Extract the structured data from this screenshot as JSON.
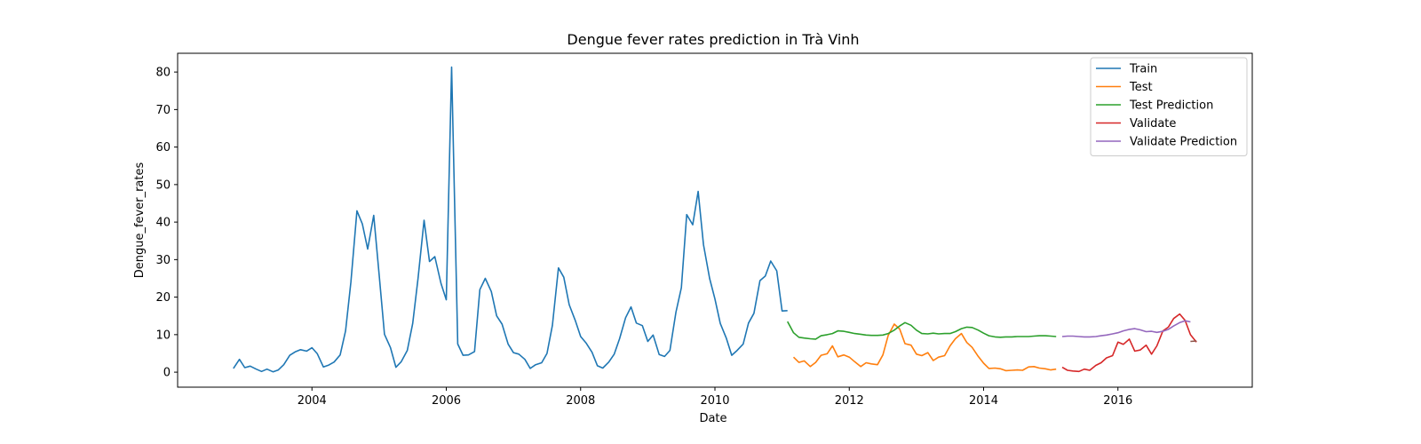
{
  "chart_data": {
    "type": "line",
    "title": "Dengue fever rates prediction in Trà Vinh",
    "xlabel": "Date",
    "ylabel": "Dengue_fever_rates",
    "xlim": [
      2002.0,
      2018.0
    ],
    "ylim": [
      -4,
      85
    ],
    "x_ticks": [
      2004,
      2006,
      2008,
      2010,
      2012,
      2014,
      2016
    ],
    "y_ticks": [
      0,
      10,
      20,
      30,
      40,
      50,
      60,
      70,
      80
    ],
    "grid": false,
    "legend_position": "top-right",
    "series": [
      {
        "name": "Train",
        "color": "#1f77b4",
        "points": [
          [
            2002.83,
            1.0
          ],
          [
            2002.92,
            3.4
          ],
          [
            2003.0,
            1.2
          ],
          [
            2003.08,
            1.6
          ],
          [
            2003.17,
            0.8
          ],
          [
            2003.25,
            0.2
          ],
          [
            2003.33,
            0.8
          ],
          [
            2003.42,
            0.1
          ],
          [
            2003.5,
            0.6
          ],
          [
            2003.58,
            2.0
          ],
          [
            2003.67,
            4.5
          ],
          [
            2003.75,
            5.4
          ],
          [
            2003.83,
            6.0
          ],
          [
            2003.92,
            5.6
          ],
          [
            2004.0,
            6.5
          ],
          [
            2004.08,
            4.9
          ],
          [
            2004.17,
            1.4
          ],
          [
            2004.25,
            1.9
          ],
          [
            2004.33,
            2.7
          ],
          [
            2004.42,
            4.6
          ],
          [
            2004.5,
            11.0
          ],
          [
            2004.58,
            24.0
          ],
          [
            2004.67,
            43.0
          ],
          [
            2004.75,
            39.5
          ],
          [
            2004.83,
            32.8
          ],
          [
            2004.92,
            41.8
          ],
          [
            2005.0,
            26.0
          ],
          [
            2005.08,
            10.1
          ],
          [
            2005.17,
            6.5
          ],
          [
            2005.25,
            1.3
          ],
          [
            2005.33,
            2.8
          ],
          [
            2005.42,
            5.8
          ],
          [
            2005.5,
            13.0
          ],
          [
            2005.58,
            25.0
          ],
          [
            2005.67,
            40.5
          ],
          [
            2005.75,
            29.5
          ],
          [
            2005.83,
            30.8
          ],
          [
            2005.92,
            23.7
          ],
          [
            2006.0,
            19.3
          ],
          [
            2006.08,
            81.3
          ],
          [
            2006.17,
            7.5
          ],
          [
            2006.25,
            4.5
          ],
          [
            2006.33,
            4.6
          ],
          [
            2006.42,
            5.5
          ],
          [
            2006.5,
            22.0
          ],
          [
            2006.58,
            25.0
          ],
          [
            2006.67,
            21.5
          ],
          [
            2006.75,
            15.0
          ],
          [
            2006.83,
            12.8
          ],
          [
            2006.92,
            7.5
          ],
          [
            2007.0,
            5.2
          ],
          [
            2007.08,
            4.8
          ],
          [
            2007.17,
            3.4
          ],
          [
            2007.25,
            1.0
          ],
          [
            2007.33,
            2.0
          ],
          [
            2007.42,
            2.5
          ],
          [
            2007.5,
            5.0
          ],
          [
            2007.58,
            12.5
          ],
          [
            2007.67,
            27.8
          ],
          [
            2007.75,
            25.3
          ],
          [
            2007.83,
            18.0
          ],
          [
            2007.92,
            13.8
          ],
          [
            2008.0,
            9.5
          ],
          [
            2008.08,
            7.8
          ],
          [
            2008.17,
            5.3
          ],
          [
            2008.25,
            1.7
          ],
          [
            2008.33,
            1.1
          ],
          [
            2008.42,
            2.7
          ],
          [
            2008.5,
            4.8
          ],
          [
            2008.58,
            8.9
          ],
          [
            2008.67,
            14.5
          ],
          [
            2008.75,
            17.4
          ],
          [
            2008.83,
            13.1
          ],
          [
            2008.92,
            12.4
          ],
          [
            2009.0,
            8.2
          ],
          [
            2009.08,
            9.9
          ],
          [
            2009.17,
            4.7
          ],
          [
            2009.25,
            4.2
          ],
          [
            2009.33,
            5.8
          ],
          [
            2009.42,
            16.0
          ],
          [
            2009.5,
            22.5
          ],
          [
            2009.58,
            42.0
          ],
          [
            2009.67,
            39.3
          ],
          [
            2009.75,
            48.2
          ],
          [
            2009.83,
            34.0
          ],
          [
            2009.92,
            25.0
          ],
          [
            2010.0,
            19.5
          ],
          [
            2010.08,
            13.0
          ],
          [
            2010.17,
            9.0
          ],
          [
            2010.25,
            4.5
          ],
          [
            2010.33,
            5.8
          ],
          [
            2010.42,
            7.5
          ],
          [
            2010.5,
            13.1
          ],
          [
            2010.58,
            15.7
          ],
          [
            2010.67,
            24.4
          ],
          [
            2010.75,
            25.6
          ],
          [
            2010.83,
            29.6
          ],
          [
            2010.92,
            27.0
          ],
          [
            2011.0,
            16.3
          ],
          [
            2011.08,
            16.4
          ]
        ]
      },
      {
        "name": "Test",
        "color": "#ff7f0e",
        "points": [
          [
            2011.17,
            4.0
          ],
          [
            2011.25,
            2.6
          ],
          [
            2011.33,
            3.0
          ],
          [
            2011.42,
            1.5
          ],
          [
            2011.5,
            2.6
          ],
          [
            2011.58,
            4.5
          ],
          [
            2011.67,
            4.9
          ],
          [
            2011.75,
            7.0
          ],
          [
            2011.83,
            4.1
          ],
          [
            2011.92,
            4.6
          ],
          [
            2012.0,
            4.0
          ],
          [
            2012.08,
            2.8
          ],
          [
            2012.17,
            1.5
          ],
          [
            2012.25,
            2.5
          ],
          [
            2012.33,
            2.2
          ],
          [
            2012.42,
            2.0
          ],
          [
            2012.5,
            4.6
          ],
          [
            2012.58,
            9.8
          ],
          [
            2012.67,
            12.8
          ],
          [
            2012.75,
            11.5
          ],
          [
            2012.83,
            7.6
          ],
          [
            2012.92,
            7.2
          ],
          [
            2013.0,
            4.8
          ],
          [
            2013.08,
            4.4
          ],
          [
            2013.17,
            5.2
          ],
          [
            2013.25,
            3.1
          ],
          [
            2013.33,
            4.0
          ],
          [
            2013.42,
            4.4
          ],
          [
            2013.5,
            7.0
          ],
          [
            2013.58,
            8.9
          ],
          [
            2013.67,
            10.3
          ],
          [
            2013.75,
            7.9
          ],
          [
            2013.83,
            6.6
          ],
          [
            2013.92,
            4.2
          ],
          [
            2014.0,
            2.4
          ],
          [
            2014.08,
            1.0
          ],
          [
            2014.17,
            1.1
          ],
          [
            2014.25,
            0.9
          ],
          [
            2014.33,
            0.4
          ],
          [
            2014.42,
            0.5
          ],
          [
            2014.5,
            0.6
          ],
          [
            2014.58,
            0.5
          ],
          [
            2014.67,
            1.4
          ],
          [
            2014.75,
            1.5
          ],
          [
            2014.83,
            1.1
          ],
          [
            2014.92,
            0.9
          ],
          [
            2015.0,
            0.6
          ],
          [
            2015.08,
            0.8
          ]
        ]
      },
      {
        "name": "Test Prediction",
        "color": "#2ca02c",
        "points": [
          [
            2011.08,
            13.5
          ],
          [
            2011.17,
            10.5
          ],
          [
            2011.25,
            9.3
          ],
          [
            2011.33,
            9.1
          ],
          [
            2011.42,
            8.9
          ],
          [
            2011.5,
            8.8
          ],
          [
            2011.58,
            9.7
          ],
          [
            2011.67,
            10.0
          ],
          [
            2011.75,
            10.3
          ],
          [
            2011.83,
            11.0
          ],
          [
            2011.92,
            10.9
          ],
          [
            2012.0,
            10.6
          ],
          [
            2012.08,
            10.3
          ],
          [
            2012.17,
            10.1
          ],
          [
            2012.25,
            9.9
          ],
          [
            2012.33,
            9.8
          ],
          [
            2012.42,
            9.8
          ],
          [
            2012.5,
            9.9
          ],
          [
            2012.58,
            10.3
          ],
          [
            2012.67,
            11.2
          ],
          [
            2012.75,
            12.3
          ],
          [
            2012.83,
            13.2
          ],
          [
            2012.92,
            12.5
          ],
          [
            2013.0,
            11.2
          ],
          [
            2013.08,
            10.3
          ],
          [
            2013.17,
            10.2
          ],
          [
            2013.25,
            10.4
          ],
          [
            2013.33,
            10.2
          ],
          [
            2013.42,
            10.3
          ],
          [
            2013.5,
            10.3
          ],
          [
            2013.58,
            10.8
          ],
          [
            2013.67,
            11.6
          ],
          [
            2013.75,
            12.0
          ],
          [
            2013.83,
            11.9
          ],
          [
            2013.92,
            11.2
          ],
          [
            2014.0,
            10.4
          ],
          [
            2014.08,
            9.7
          ],
          [
            2014.17,
            9.4
          ],
          [
            2014.25,
            9.3
          ],
          [
            2014.33,
            9.4
          ],
          [
            2014.42,
            9.4
          ],
          [
            2014.5,
            9.5
          ],
          [
            2014.58,
            9.5
          ],
          [
            2014.67,
            9.5
          ],
          [
            2014.75,
            9.6
          ],
          [
            2014.83,
            9.7
          ],
          [
            2014.92,
            9.7
          ],
          [
            2015.0,
            9.6
          ],
          [
            2015.08,
            9.5
          ]
        ]
      },
      {
        "name": "Validate",
        "color": "#d62728",
        "points": [
          [
            2015.17,
            1.3
          ],
          [
            2015.25,
            0.5
          ],
          [
            2015.33,
            0.3
          ],
          [
            2015.42,
            0.2
          ],
          [
            2015.5,
            0.8
          ],
          [
            2015.58,
            0.5
          ],
          [
            2015.67,
            1.8
          ],
          [
            2015.75,
            2.5
          ],
          [
            2015.83,
            3.8
          ],
          [
            2015.92,
            4.4
          ],
          [
            2016.0,
            8.0
          ],
          [
            2016.08,
            7.4
          ],
          [
            2016.17,
            8.8
          ],
          [
            2016.25,
            5.6
          ],
          [
            2016.33,
            5.9
          ],
          [
            2016.42,
            7.2
          ],
          [
            2016.5,
            4.8
          ],
          [
            2016.58,
            7.0
          ],
          [
            2016.67,
            11.0
          ],
          [
            2016.75,
            12.0
          ],
          [
            2016.83,
            14.3
          ],
          [
            2016.92,
            15.5
          ],
          [
            2017.0,
            13.8
          ],
          [
            2017.08,
            10.0
          ],
          [
            2017.17,
            8.0
          ]
        ]
      },
      {
        "name": "Validate Prediction",
        "color": "#9467bd",
        "points": [
          [
            2015.17,
            9.5
          ],
          [
            2015.25,
            9.6
          ],
          [
            2015.33,
            9.6
          ],
          [
            2015.42,
            9.5
          ],
          [
            2015.5,
            9.4
          ],
          [
            2015.58,
            9.4
          ],
          [
            2015.67,
            9.5
          ],
          [
            2015.75,
            9.7
          ],
          [
            2015.83,
            9.9
          ],
          [
            2015.92,
            10.2
          ],
          [
            2016.0,
            10.5
          ],
          [
            2016.08,
            11.0
          ],
          [
            2016.17,
            11.4
          ],
          [
            2016.25,
            11.6
          ],
          [
            2016.33,
            11.3
          ],
          [
            2016.42,
            10.8
          ],
          [
            2016.5,
            10.9
          ],
          [
            2016.58,
            10.6
          ],
          [
            2016.67,
            10.9
          ],
          [
            2016.75,
            11.4
          ],
          [
            2016.83,
            12.3
          ],
          [
            2016.92,
            13.2
          ],
          [
            2017.0,
            13.7
          ],
          [
            2017.08,
            13.4
          ]
        ]
      },
      {
        "name": "",
        "color": "#8c564b",
        "points": [
          [
            2017.08,
            8.2
          ],
          [
            2017.17,
            8.3
          ]
        ]
      }
    ]
  }
}
